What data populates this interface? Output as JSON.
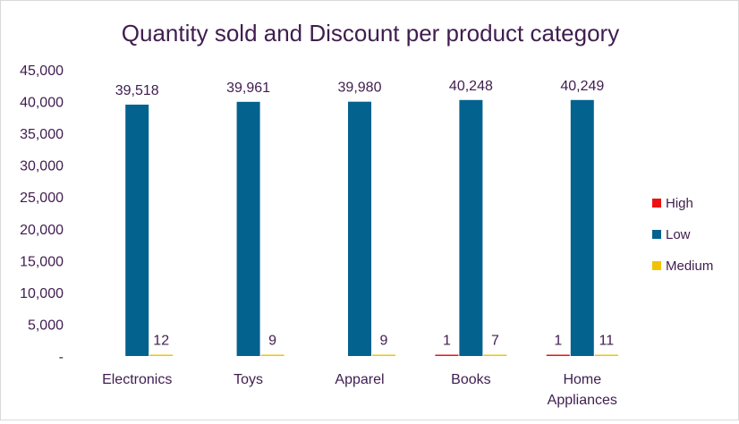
{
  "chart_data": {
    "type": "bar",
    "title": "Quantity sold and Discount per product category",
    "categories": [
      "Electronics",
      "Toys",
      "Apparel",
      "Books",
      "Home Appliances"
    ],
    "series": [
      {
        "name": "High",
        "color": "#ee1111",
        "values": [
          0,
          0,
          0,
          1,
          1
        ],
        "labels": [
          "",
          "",
          "",
          "1",
          "1"
        ]
      },
      {
        "name": "Low",
        "color": "#04628f",
        "values": [
          39518,
          39961,
          39980,
          40248,
          40249
        ],
        "labels": [
          "39,518",
          "39,961",
          "39,980",
          "40,248",
          "40,249"
        ]
      },
      {
        "name": "Medium",
        "color": "#f2c300",
        "values": [
          12,
          9,
          9,
          7,
          11
        ],
        "labels": [
          "12",
          "9",
          "9",
          "7",
          "11"
        ]
      }
    ],
    "y_ticks": [
      "-",
      "5,000",
      "10,000",
      "15,000",
      "20,000",
      "25,000",
      "30,000",
      "35,000",
      "40,000",
      "45,000"
    ],
    "ylim": [
      0,
      45000
    ],
    "grid": false,
    "legend": "right"
  }
}
